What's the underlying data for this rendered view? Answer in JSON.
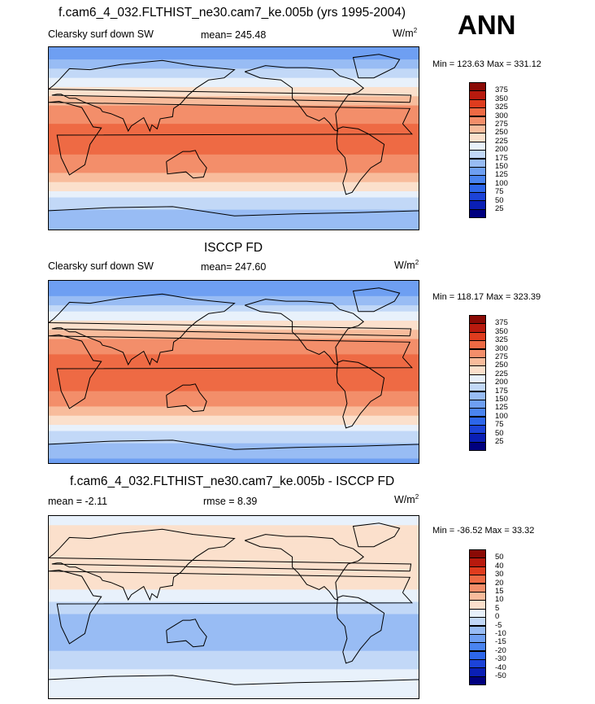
{
  "season": "ANN",
  "panels": [
    {
      "title": "f.cam6_4_032.FLTHIST_ne30.cam7_ke.005b (yrs 1995-2004)",
      "left_label": "Clearsky surf down SW",
      "center_label": "mean= 245.48",
      "units": "W/m",
      "units_sup": "2",
      "minmax": "Min = 123.63 Max = 331.12"
    },
    {
      "title": "ISCCP FD",
      "left_label": "Clearsky surf down SW",
      "center_label": "mean= 247.60",
      "units": "W/m",
      "units_sup": "2",
      "minmax": "Min = 118.17 Max = 323.39"
    },
    {
      "title": "f.cam6_4_032.FLTHIST_ne30.cam7_ke.005b - ISCCP FD",
      "left_label": "mean =  -2.11",
      "center_label": "rmse =   8.39",
      "units": "W/m",
      "units_sup": "2",
      "minmax": "Min = -36.52 Max =  33.32"
    }
  ],
  "chart_data": [
    {
      "type": "heatmap",
      "title": "f.cam6_4_032.FLTHIST_ne30.cam7_ke.005b (yrs 1995-2004)",
      "variable": "Clearsky surf down SW",
      "units": "W/m2",
      "mean": 245.48,
      "min": 123.63,
      "max": 331.12,
      "levels": [
        25,
        50,
        75,
        100,
        125,
        150,
        175,
        200,
        225,
        250,
        275,
        300,
        325,
        350,
        375
      ],
      "colors": [
        "#00007f",
        "#0a1fb5",
        "#1c43d8",
        "#2d66ea",
        "#4a84f0",
        "#6e9ff2",
        "#98bcf4",
        "#c2d8f7",
        "#e8f1fb",
        "#fbe0cc",
        "#f8bc9c",
        "#f38e6a",
        "#ee6a44",
        "#df3c1e",
        "#b81a0e",
        "#8a0a05"
      ],
      "latitude_profile": {
        "lat": [
          90,
          75,
          60,
          45,
          30,
          15,
          0,
          -15,
          -30,
          -45,
          -60,
          -75,
          -90
        ],
        "value": [
          135,
          155,
          195,
          245,
          285,
          300,
          300,
          300,
          285,
          240,
          190,
          160,
          150
        ]
      }
    },
    {
      "type": "heatmap",
      "title": "ISCCP FD",
      "variable": "Clearsky surf down SW",
      "units": "W/m2",
      "mean": 247.6,
      "min": 118.17,
      "max": 323.39,
      "levels": [
        25,
        50,
        75,
        100,
        125,
        150,
        175,
        200,
        225,
        250,
        275,
        300,
        325,
        350,
        375
      ],
      "colors": [
        "#00007f",
        "#0a1fb5",
        "#1c43d8",
        "#2d66ea",
        "#4a84f0",
        "#6e9ff2",
        "#98bcf4",
        "#c2d8f7",
        "#e8f1fb",
        "#fbe0cc",
        "#f8bc9c",
        "#f38e6a",
        "#ee6a44",
        "#df3c1e",
        "#b81a0e",
        "#8a0a05"
      ],
      "latitude_profile": {
        "lat": [
          90,
          75,
          60,
          45,
          30,
          15,
          0,
          -15,
          -30,
          -45,
          -60,
          -75,
          -90
        ],
        "value": [
          125,
          150,
          195,
          245,
          285,
          305,
          310,
          305,
          285,
          240,
          195,
          160,
          140
        ]
      }
    },
    {
      "type": "heatmap",
      "title": "f.cam6_4_032.FLTHIST_ne30.cam7_ke.005b - ISCCP FD",
      "units": "W/m2",
      "mean": -2.11,
      "rmse": 8.39,
      "min": -36.52,
      "max": 33.32,
      "levels": [
        -50,
        -40,
        -30,
        -20,
        -15,
        -10,
        -5,
        0,
        5,
        10,
        15,
        20,
        30,
        40,
        50
      ],
      "colors": [
        "#00007f",
        "#0a1fb5",
        "#1c43d8",
        "#2d66ea",
        "#4a84f0",
        "#6e9ff2",
        "#98bcf4",
        "#c2d8f7",
        "#e8f1fb",
        "#fbe0cc",
        "#f8bc9c",
        "#f38e6a",
        "#ee6a44",
        "#df3c1e",
        "#b81a0e",
        "#8a0a05"
      ],
      "latitude_profile": {
        "lat": [
          90,
          75,
          60,
          45,
          30,
          15,
          0,
          -15,
          -30,
          -45,
          -60,
          -75,
          -90
        ],
        "value": [
          0,
          8,
          8,
          6,
          8,
          4,
          -2,
          -10,
          -10,
          -4,
          0,
          2,
          0
        ]
      }
    }
  ]
}
